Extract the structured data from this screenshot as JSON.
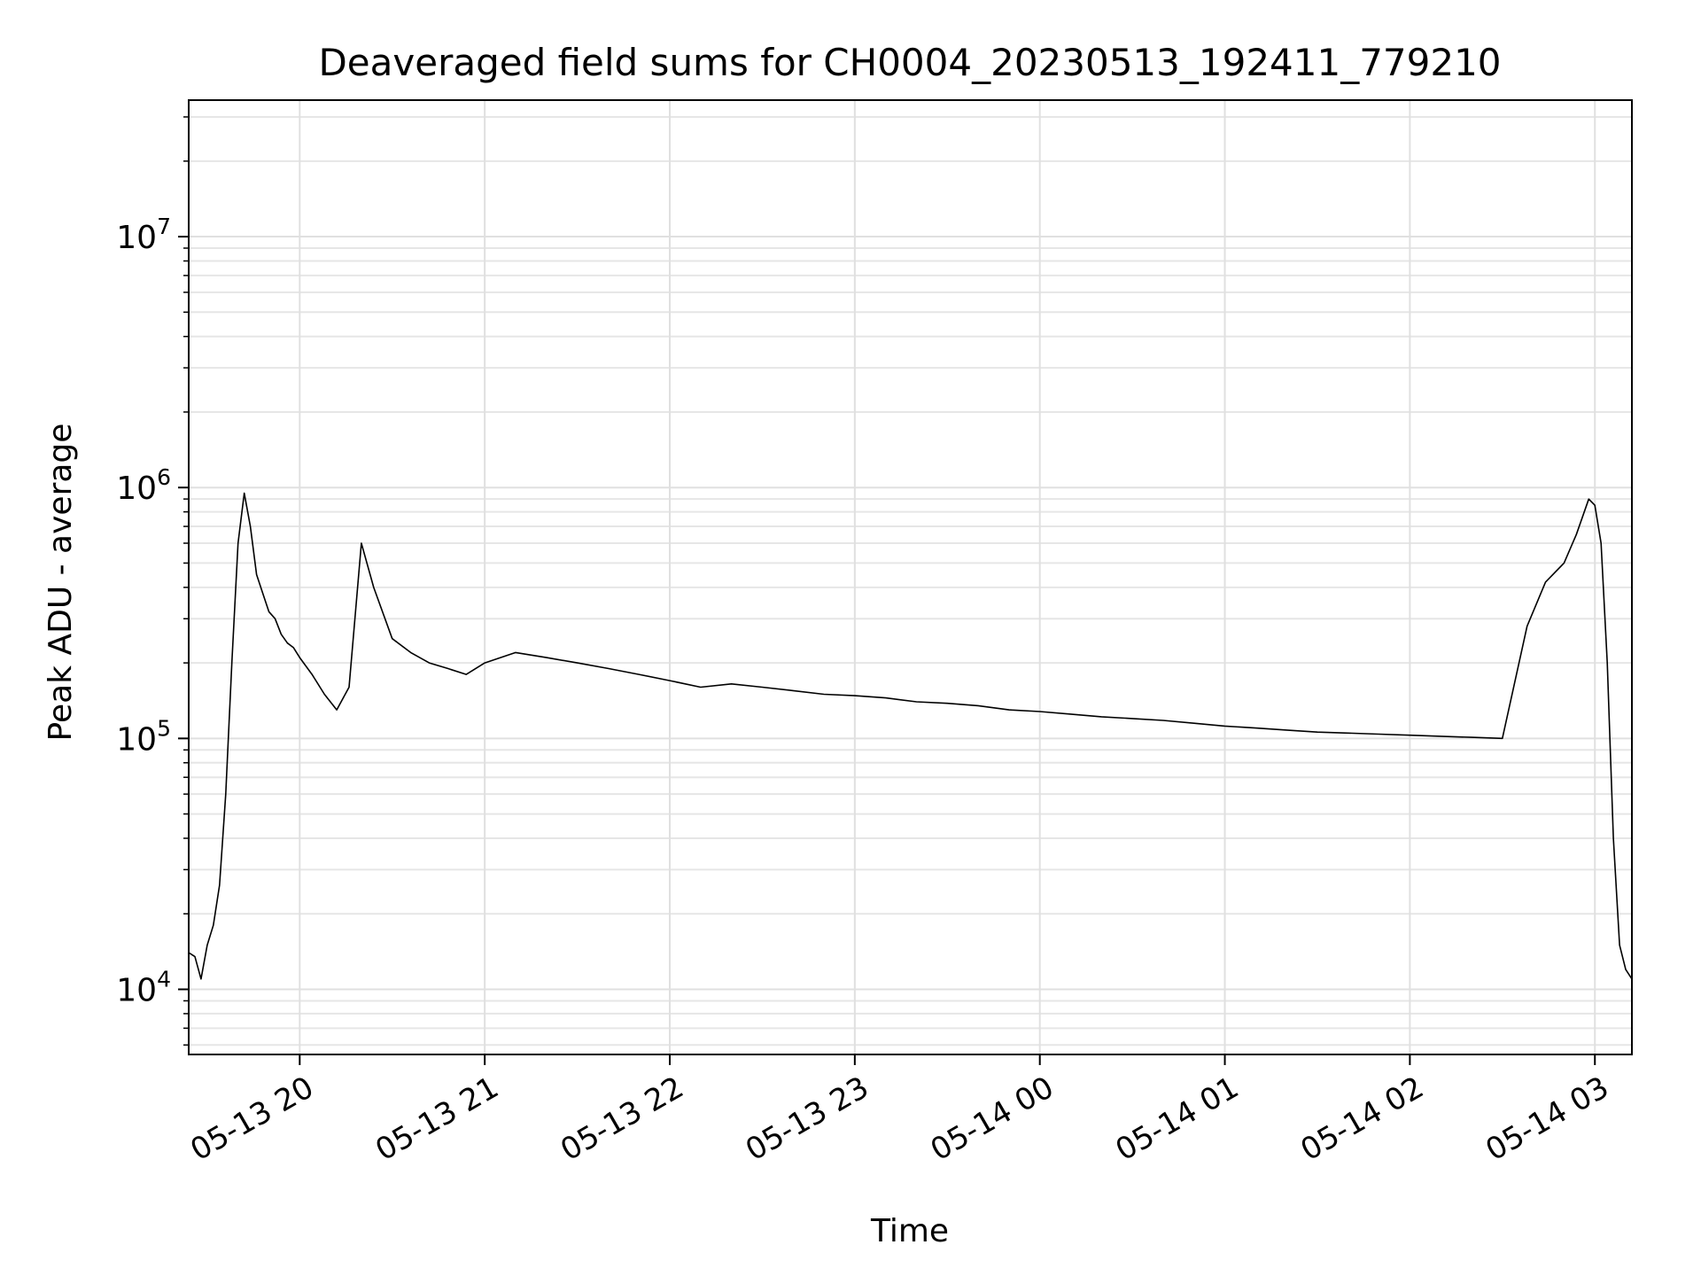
{
  "chart_data": {
    "type": "line",
    "title": "Deaveraged field sums for CH0004_20230513_192411_779210",
    "xlabel": "Time",
    "ylabel": "Peak ADU - average",
    "yscale": "log",
    "xlim": [
      "2023-05-13 19:24",
      "2023-05-14 03:12"
    ],
    "ylim": [
      5500,
      35000000
    ],
    "grid": true,
    "line_color": "#000000",
    "x_ticks": [
      {
        "value": "2023-05-13 20:00",
        "label": "05-13 20"
      },
      {
        "value": "2023-05-13 21:00",
        "label": "05-13 21"
      },
      {
        "value": "2023-05-13 22:00",
        "label": "05-13 22"
      },
      {
        "value": "2023-05-13 23:00",
        "label": "05-13 23"
      },
      {
        "value": "2023-05-14 00:00",
        "label": "05-14 00"
      },
      {
        "value": "2023-05-14 01:00",
        "label": "05-14 01"
      },
      {
        "value": "2023-05-14 02:00",
        "label": "05-14 02"
      },
      {
        "value": "2023-05-14 03:00",
        "label": "05-14 03"
      }
    ],
    "y_ticks": [
      {
        "value": 10000,
        "base": "10",
        "exp": "4"
      },
      {
        "value": 100000,
        "base": "10",
        "exp": "5"
      },
      {
        "value": 1000000,
        "base": "10",
        "exp": "6"
      },
      {
        "value": 10000000,
        "base": "10",
        "exp": "7"
      }
    ],
    "series": [
      {
        "x": [
          "2023-05-13 19:24",
          "2023-05-13 19:26",
          "2023-05-13 19:28",
          "2023-05-13 19:30",
          "2023-05-13 19:32",
          "2023-05-13 19:34",
          "2023-05-13 19:36",
          "2023-05-13 19:38",
          "2023-05-13 19:40",
          "2023-05-13 19:42",
          "2023-05-13 19:44",
          "2023-05-13 19:46",
          "2023-05-13 19:48",
          "2023-05-13 19:50",
          "2023-05-13 19:52",
          "2023-05-13 19:54",
          "2023-05-13 19:56",
          "2023-05-13 19:58",
          "2023-05-13 20:00",
          "2023-05-13 20:04",
          "2023-05-13 20:08",
          "2023-05-13 20:12",
          "2023-05-13 20:16",
          "2023-05-13 20:20",
          "2023-05-13 20:24",
          "2023-05-13 20:30",
          "2023-05-13 20:36",
          "2023-05-13 20:42",
          "2023-05-13 20:48",
          "2023-05-13 20:54",
          "2023-05-13 21:00",
          "2023-05-13 21:10",
          "2023-05-13 21:20",
          "2023-05-13 21:30",
          "2023-05-13 21:40",
          "2023-05-13 21:50",
          "2023-05-13 22:00",
          "2023-05-13 22:10",
          "2023-05-13 22:20",
          "2023-05-13 22:30",
          "2023-05-13 22:40",
          "2023-05-13 22:50",
          "2023-05-13 23:00",
          "2023-05-13 23:10",
          "2023-05-13 23:20",
          "2023-05-13 23:30",
          "2023-05-13 23:40",
          "2023-05-13 23:50",
          "2023-05-14 00:00",
          "2023-05-14 00:10",
          "2023-05-14 00:20",
          "2023-05-14 00:30",
          "2023-05-14 00:40",
          "2023-05-14 00:50",
          "2023-05-14 01:00",
          "2023-05-14 01:10",
          "2023-05-14 01:20",
          "2023-05-14 01:30",
          "2023-05-14 01:40",
          "2023-05-14 01:50",
          "2023-05-14 02:00",
          "2023-05-14 02:10",
          "2023-05-14 02:20",
          "2023-05-14 02:30",
          "2023-05-14 02:38",
          "2023-05-14 02:44",
          "2023-05-14 02:50",
          "2023-05-14 02:54",
          "2023-05-14 02:58",
          "2023-05-14 03:00",
          "2023-05-14 03:02",
          "2023-05-14 03:04",
          "2023-05-14 03:06",
          "2023-05-14 03:08",
          "2023-05-14 03:10",
          "2023-05-14 03:12"
        ],
        "y": [
          14000,
          13500,
          11000,
          15000,
          18000,
          26000,
          60000,
          200000,
          600000,
          950000,
          700000,
          450000,
          380000,
          320000,
          300000,
          260000,
          240000,
          230000,
          210000,
          180000,
          150000,
          130000,
          160000,
          600000,
          400000,
          250000,
          220000,
          200000,
          190000,
          180000,
          200000,
          220000,
          210000,
          200000,
          190000,
          180000,
          170000,
          160000,
          165000,
          160000,
          155000,
          150000,
          148000,
          145000,
          140000,
          138000,
          135000,
          130000,
          128000,
          125000,
          122000,
          120000,
          118000,
          115000,
          112000,
          110000,
          108000,
          106000,
          105000,
          104000,
          103000,
          102000,
          101000,
          100000,
          280000,
          420000,
          500000,
          650000,
          900000,
          850000,
          600000,
          200000,
          40000,
          15000,
          12000,
          11000
        ]
      }
    ]
  }
}
